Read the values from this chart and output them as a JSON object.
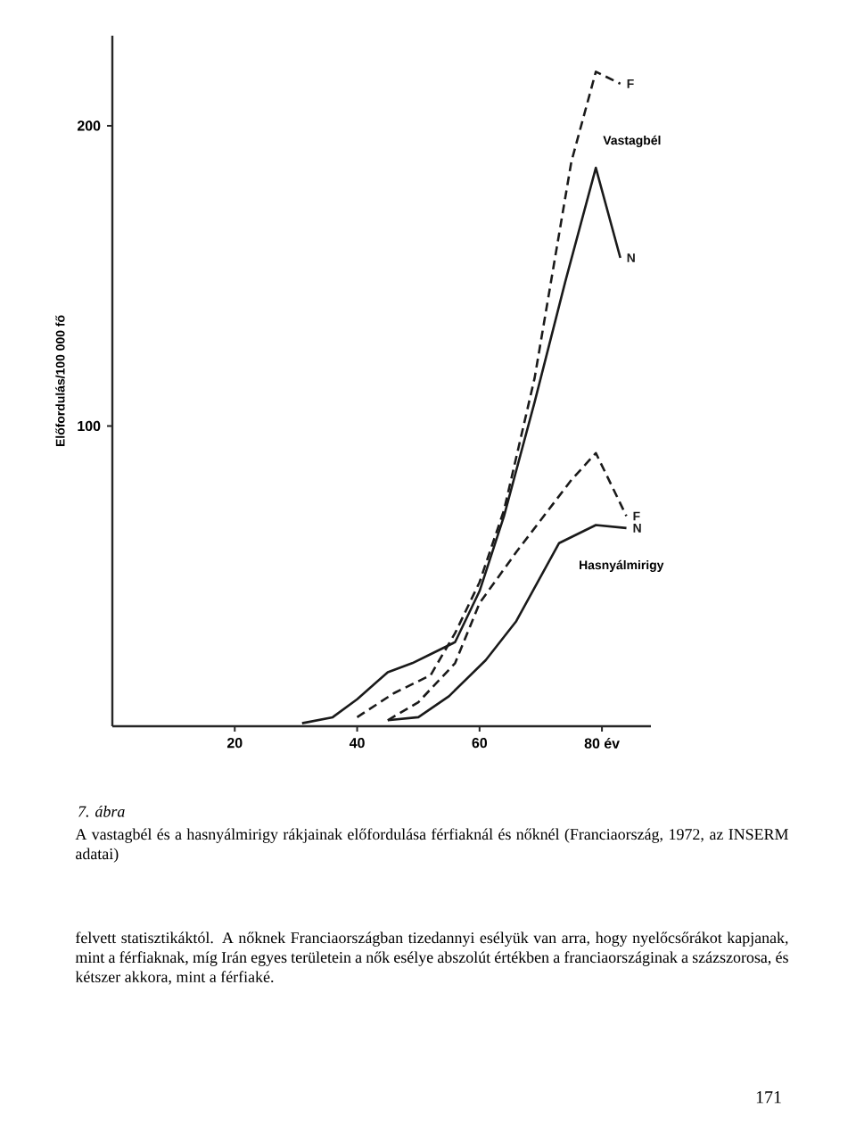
{
  "chart_data": {
    "type": "line",
    "title": "7. ábra",
    "ylabel": "Előfordulás/100 000 fő",
    "xlim": [
      0,
      88
    ],
    "ylim": [
      0,
      230
    ],
    "xticks": [
      20,
      40,
      60,
      {
        "value": 80,
        "label": "80 év"
      }
    ],
    "yticks": [
      100,
      200
    ],
    "marker": "none",
    "grid": false,
    "legend": false,
    "series": [
      {
        "name": "F",
        "color": "#1a1a1a",
        "line_style": "dashed",
        "x": [
          40,
          46,
          52,
          56,
          60,
          64,
          69,
          75,
          79,
          83
        ],
        "values": [
          3,
          11,
          17,
          31,
          48,
          72,
          116,
          188,
          218,
          214
        ]
      },
      {
        "name": "N",
        "color": "#1a1a1a",
        "line_style": "solid",
        "x": [
          31,
          36,
          40,
          45,
          49,
          52,
          56,
          60,
          64,
          69,
          74,
          79,
          83
        ],
        "values": [
          1,
          3,
          9,
          18,
          21,
          24,
          28,
          45,
          70,
          108,
          148,
          186,
          156
        ]
      },
      {
        "name": "F",
        "color": "#1a1a1a",
        "line_style": "dashed",
        "x": [
          45,
          50,
          56,
          60,
          66,
          75,
          79,
          84
        ],
        "values": [
          2,
          8,
          21,
          41,
          58,
          82,
          91,
          70
        ]
      },
      {
        "name": "N",
        "color": "#1a1a1a",
        "line_style": "solid",
        "x": [
          45,
          50,
          55,
          61,
          66,
          73,
          79,
          84
        ],
        "values": [
          2,
          3,
          10,
          22,
          35,
          61,
          67,
          66
        ]
      }
    ],
    "annotations": [
      "Vastagbél",
      "Hasnyálmirigy",
      "A vastagbél és a hasnyálmirigy rákjainak előfordulása férfiaknál és nőknél (Franciaország, 1972, az INSERM adatai)",
      "felvett statisztikáktól. A nőknek Franciaországban tizedannyi esélyük van arra, hogy nyelőcsőrákot kapjanak, mint a férfiaknak, míg Irán egyes területein a nők esélye abszolút értékben a franciaországinak a százszorosa, és kétszer akkora, mint a férfiaké.",
      "171"
    ]
  }
}
